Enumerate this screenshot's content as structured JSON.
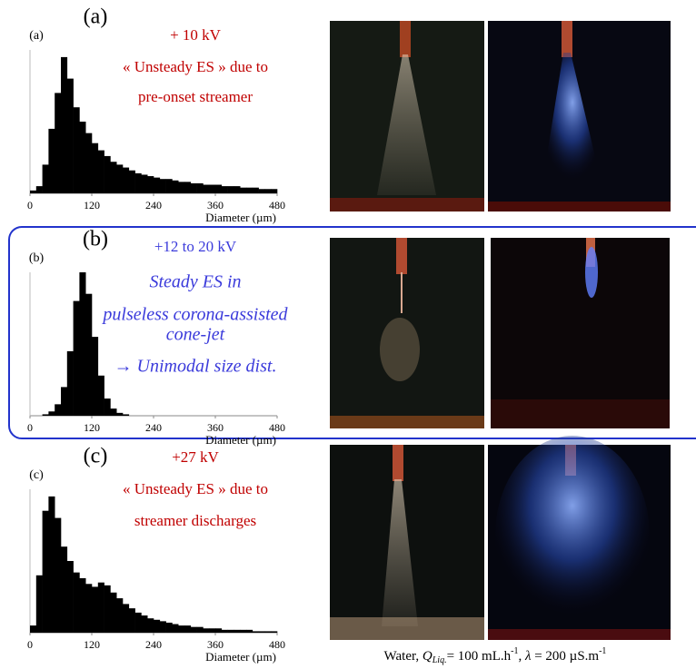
{
  "chart_data": [
    {
      "type": "histogram",
      "xlabel": "Diameter (µm)",
      "color": "#000000",
      "bins": [
        0,
        12,
        24,
        36,
        48,
        60,
        72,
        84,
        96,
        108,
        120,
        132,
        144,
        156,
        168,
        180,
        192,
        204,
        216,
        228,
        240,
        252,
        264,
        276,
        288,
        300,
        312,
        324,
        336,
        348,
        360,
        372,
        384,
        396,
        408,
        420,
        432,
        444,
        456,
        468,
        480
      ],
      "counts": [
        2,
        5,
        20,
        45,
        70,
        95,
        80,
        60,
        50,
        42,
        35,
        30,
        26,
        22,
        20,
        18,
        16,
        14,
        13,
        12,
        11,
        10,
        10,
        9,
        8,
        8,
        7,
        7,
        6,
        6,
        6,
        5,
        5,
        5,
        4,
        4,
        4,
        3,
        3,
        3
      ],
      "xlim": [
        0,
        480
      ],
      "xticks": [
        0,
        120,
        240,
        360,
        480
      ],
      "ylim": [
        0,
        100
      ]
    },
    {
      "type": "histogram",
      "xlabel": "Diameter (µm)",
      "color": "#000000",
      "bins": [
        0,
        12,
        24,
        36,
        48,
        60,
        72,
        84,
        96,
        108,
        120,
        132,
        144,
        156,
        168,
        180,
        192,
        204,
        216,
        228,
        240,
        252,
        264,
        276,
        288,
        300,
        312,
        324,
        336,
        348,
        360,
        372,
        384,
        396,
        408,
        420,
        432,
        444,
        456,
        468,
        480
      ],
      "counts": [
        0,
        0,
        1,
        3,
        8,
        20,
        45,
        80,
        100,
        85,
        55,
        28,
        12,
        5,
        2,
        1,
        0,
        0,
        0,
        0,
        0,
        0,
        0,
        0,
        0,
        0,
        0,
        0,
        0,
        0,
        0,
        0,
        0,
        0,
        0,
        0,
        0,
        0,
        0,
        0
      ],
      "xlim": [
        0,
        480
      ],
      "xticks": [
        0,
        120,
        240,
        360,
        480
      ],
      "ylim": [
        0,
        100
      ]
    },
    {
      "type": "histogram",
      "xlabel": "Diameter (µm)",
      "color": "#000000",
      "bins": [
        0,
        12,
        24,
        36,
        48,
        60,
        72,
        84,
        96,
        108,
        120,
        132,
        144,
        156,
        168,
        180,
        192,
        204,
        216,
        228,
        240,
        252,
        264,
        276,
        288,
        300,
        312,
        324,
        336,
        348,
        360,
        372,
        384,
        396,
        408,
        420,
        432,
        444,
        456,
        468,
        480
      ],
      "counts": [
        5,
        40,
        85,
        95,
        80,
        60,
        50,
        42,
        38,
        34,
        32,
        35,
        33,
        28,
        24,
        20,
        17,
        14,
        12,
        10,
        9,
        8,
        7,
        6,
        5,
        5,
        4,
        4,
        3,
        3,
        3,
        2,
        2,
        2,
        2,
        2,
        1,
        1,
        1,
        1
      ],
      "xlim": [
        0,
        480
      ],
      "xticks": [
        0,
        120,
        240,
        360,
        480
      ],
      "ylim": [
        0,
        100
      ]
    }
  ],
  "panels": [
    {
      "heading": "(a)",
      "plot_label": "(a)",
      "voltage": "+ 10 kV",
      "color": "#c00000",
      "italic": false,
      "lines": [
        "« Unsteady ES » due to",
        "pre-onset streamer"
      ]
    },
    {
      "heading": "(b)",
      "plot_label": "(b)",
      "voltage": "+12 to 20 kV",
      "color": "#3b3bdb",
      "italic": true,
      "lines": [
        "Steady ES in",
        "pulseless corona-assisted",
        "cone-jet",
        "→ Unimodal size dist."
      ]
    },
    {
      "heading": "(c)",
      "plot_label": "(c)",
      "voltage": "+27 kV",
      "color": "#c00000",
      "italic": false,
      "lines": [
        "« Unsteady ES » due to",
        "streamer discharges"
      ]
    }
  ],
  "caption": {
    "liquid": "Water, ",
    "q_symbol": "Q",
    "q_sub": "Liq.",
    "q_value": "= 100 mL.h",
    "q_exp": "-1",
    "sep": ", ",
    "lambda": "λ",
    "lambda_value": " = 200 µS.m",
    "lambda_exp": "-1"
  }
}
